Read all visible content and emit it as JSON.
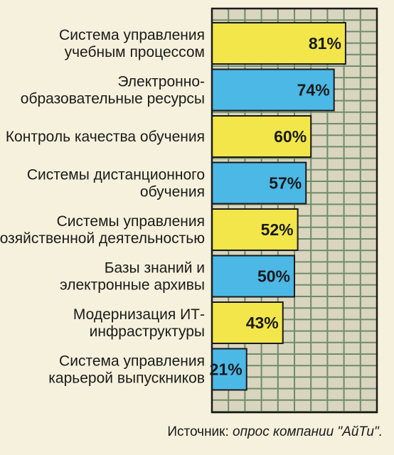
{
  "chart_data": {
    "type": "bar",
    "orientation": "horizontal",
    "categories": [
      [
        "Система управления",
        "учебным процессом"
      ],
      [
        "Электронно-",
        "образовательные ресурсы"
      ],
      [
        "Контроль качества обучения"
      ],
      [
        "Системы дистанционного",
        "обучения"
      ],
      [
        "Системы управления",
        "хозяйственной деятельностью"
      ],
      [
        "Базы знаний и",
        "электронные архивы"
      ],
      [
        "Модернизация ИТ-",
        "инфраструктуры"
      ],
      [
        "Система управления",
        "карьерой выпускников"
      ]
    ],
    "values": [
      81,
      74,
      60,
      57,
      52,
      50,
      43,
      21
    ],
    "value_labels": [
      "81%",
      "74%",
      "60%",
      "57%",
      "52%",
      "50%",
      "43%",
      "21%"
    ],
    "xlim": [
      0,
      100
    ],
    "grid": true,
    "colors": {
      "bar_yellow": "#f2e64a",
      "bar_blue": "#4cb8e6",
      "plot_bg": "#d9d5bf",
      "grid_line": "#6f8c6a",
      "frame": "#1a1a1a",
      "page_bg": "#f5f1dc"
    }
  },
  "source": {
    "prefix": "Источник: ",
    "text": "опрос компании \"АйТи\"."
  }
}
